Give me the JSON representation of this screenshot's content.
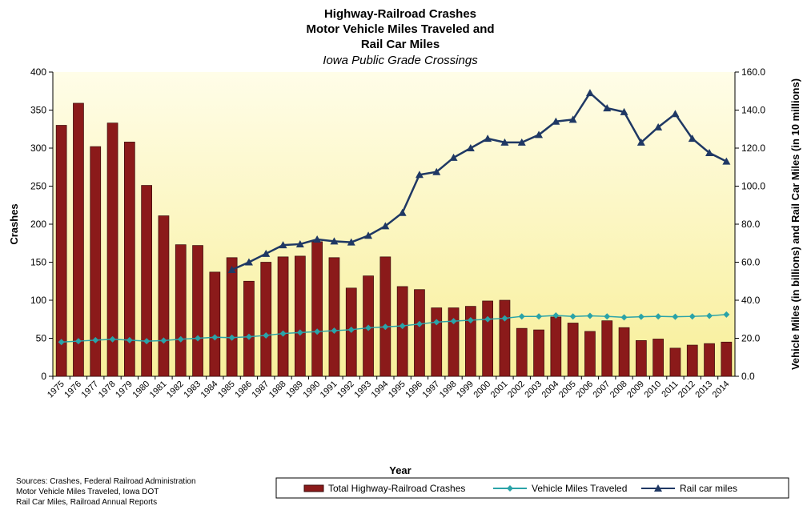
{
  "chart_data": {
    "type": "bar",
    "title": [
      "Highway-Railroad Crashes",
      "Motor Vehicle Miles Traveled and",
      "Rail Car Miles"
    ],
    "subtitle": "Iowa Public Grade Crossings",
    "x_label": "Year",
    "y_label": "Crashes",
    "y2_label": "Vehicle Miles (in billions) and Rail Car Miles (in 10 millions)",
    "notes": [
      "Sources: Crashes, Federal Railroad Administration",
      "Motor Vehicle Miles Traveled, Iowa DOT",
      "Rail Car Miles, Railroad Annual Reports"
    ],
    "categories": [
      "1975",
      "1976",
      "1977",
      "1978",
      "1979",
      "1980",
      "1981",
      "1982",
      "1983",
      "1984",
      "1985",
      "1986",
      "1987",
      "1988",
      "1989",
      "1990",
      "1991",
      "1992",
      "1993",
      "1994",
      "1995",
      "1996",
      "1997",
      "1998",
      "1999",
      "2000",
      "2001",
      "2002",
      "2003",
      "2004",
      "2005",
      "2006",
      "2007",
      "2008",
      "2009",
      "2010",
      "2011",
      "2012",
      "2013",
      "2014"
    ],
    "series": [
      {
        "name": "Total Highway-Railroad Crashes",
        "type": "bar",
        "color": "#8b1a1a",
        "values": [
          330,
          359,
          302,
          333,
          308,
          251,
          211,
          173,
          172,
          137,
          156,
          125,
          150,
          157,
          158,
          177,
          156,
          116,
          132,
          157,
          118,
          114,
          90,
          90,
          92,
          99,
          100,
          63,
          61,
          78,
          70,
          59,
          73,
          64,
          47,
          49,
          37,
          41,
          43,
          45
        ]
      },
      {
        "name": "Vehicle Miles Traveled",
        "type": "line",
        "marker": "diamond",
        "axis": "y2",
        "color": "#2aa3a8",
        "values": [
          18.0,
          18.5,
          19.0,
          19.5,
          19.0,
          18.5,
          18.8,
          19.5,
          20.0,
          20.5,
          20.3,
          20.8,
          21.5,
          22.5,
          23.0,
          23.5,
          24.0,
          24.5,
          25.5,
          26.0,
          26.5,
          27.5,
          28.5,
          29.0,
          29.5,
          30.0,
          30.5,
          31.5,
          31.5,
          32.0,
          31.5,
          31.8,
          31.5,
          31.0,
          31.3,
          31.5,
          31.3,
          31.5,
          31.8,
          32.5
        ]
      },
      {
        "name": "Rail car miles",
        "type": "line",
        "marker": "triangle",
        "axis": "y2",
        "color": "#1f3864",
        "values": [
          null,
          null,
          null,
          null,
          null,
          null,
          null,
          null,
          null,
          null,
          56,
          60,
          64.5,
          69,
          69.5,
          72,
          71,
          70.5,
          74,
          79,
          86,
          106,
          107.5,
          115,
          120,
          125,
          123,
          123,
          127,
          134,
          135,
          149,
          141,
          139,
          123,
          131,
          138,
          125,
          117.5,
          113
        ]
      }
    ],
    "ylim": [
      0,
      400
    ],
    "yticks": [
      0,
      50,
      100,
      150,
      200,
      250,
      300,
      350,
      400
    ],
    "y2lim": [
      0,
      160
    ],
    "y2ticks": [
      {
        "value": 0,
        "label": "0.0"
      },
      {
        "value": 20,
        "label": "20.0"
      },
      {
        "value": 40,
        "label": "40.0"
      },
      {
        "value": 60,
        "label": "60.0"
      },
      {
        "value": 80,
        "label": "80.0"
      },
      {
        "value": 100,
        "label": "100.0"
      },
      {
        "value": 120,
        "label": "120.0"
      },
      {
        "value": 140,
        "label": "140.0"
      },
      {
        "value": 160,
        "label": "160.0"
      }
    ],
    "grid": false,
    "legend": "bottom"
  }
}
